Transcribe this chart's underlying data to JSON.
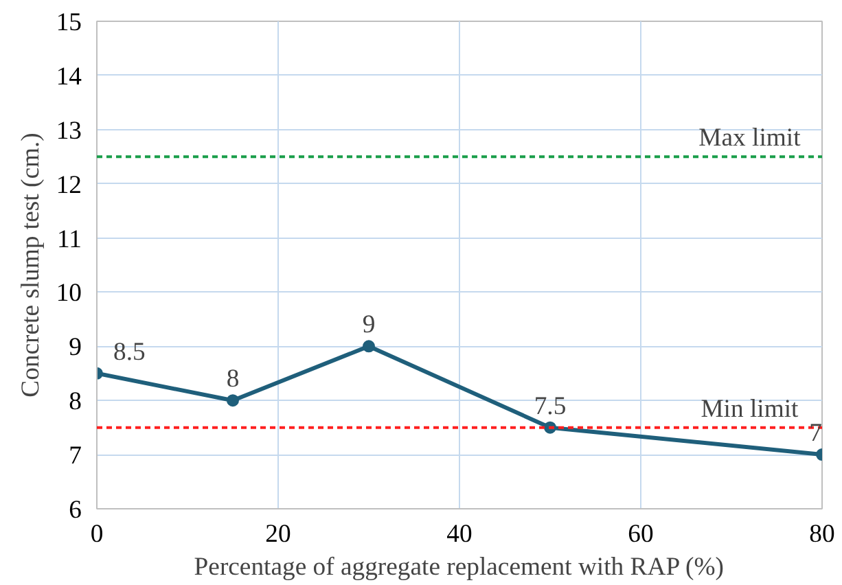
{
  "chart_data": {
    "type": "line",
    "xlabel": "Percentage of aggregate replacement with RAP (%)",
    "ylabel": "Concrete slump test (cm.)",
    "x": [
      0,
      15,
      30,
      50,
      80
    ],
    "series": [
      {
        "color": "#1f5f7b",
        "values": [
          8.5,
          8,
          9,
          7.5,
          7
        ]
      }
    ],
    "xlim": [
      0,
      80
    ],
    "xticks": [
      0,
      20,
      40,
      60,
      80
    ],
    "ylim": [
      6,
      15
    ],
    "yticks": [
      6,
      7,
      8,
      9,
      10,
      11,
      12,
      13,
      14,
      15
    ],
    "grid": true,
    "marker": "circle",
    "line_style": "solid",
    "data_labels": true,
    "ref_lines": [
      {
        "axis": "y",
        "value": 12.5,
        "label": "Max limit",
        "color": "#1a9e4a",
        "line_style": "dashed"
      },
      {
        "axis": "y",
        "value": 7.5,
        "label": "Min limit",
        "color": "#ff2020",
        "line_style": "dashed"
      }
    ]
  }
}
